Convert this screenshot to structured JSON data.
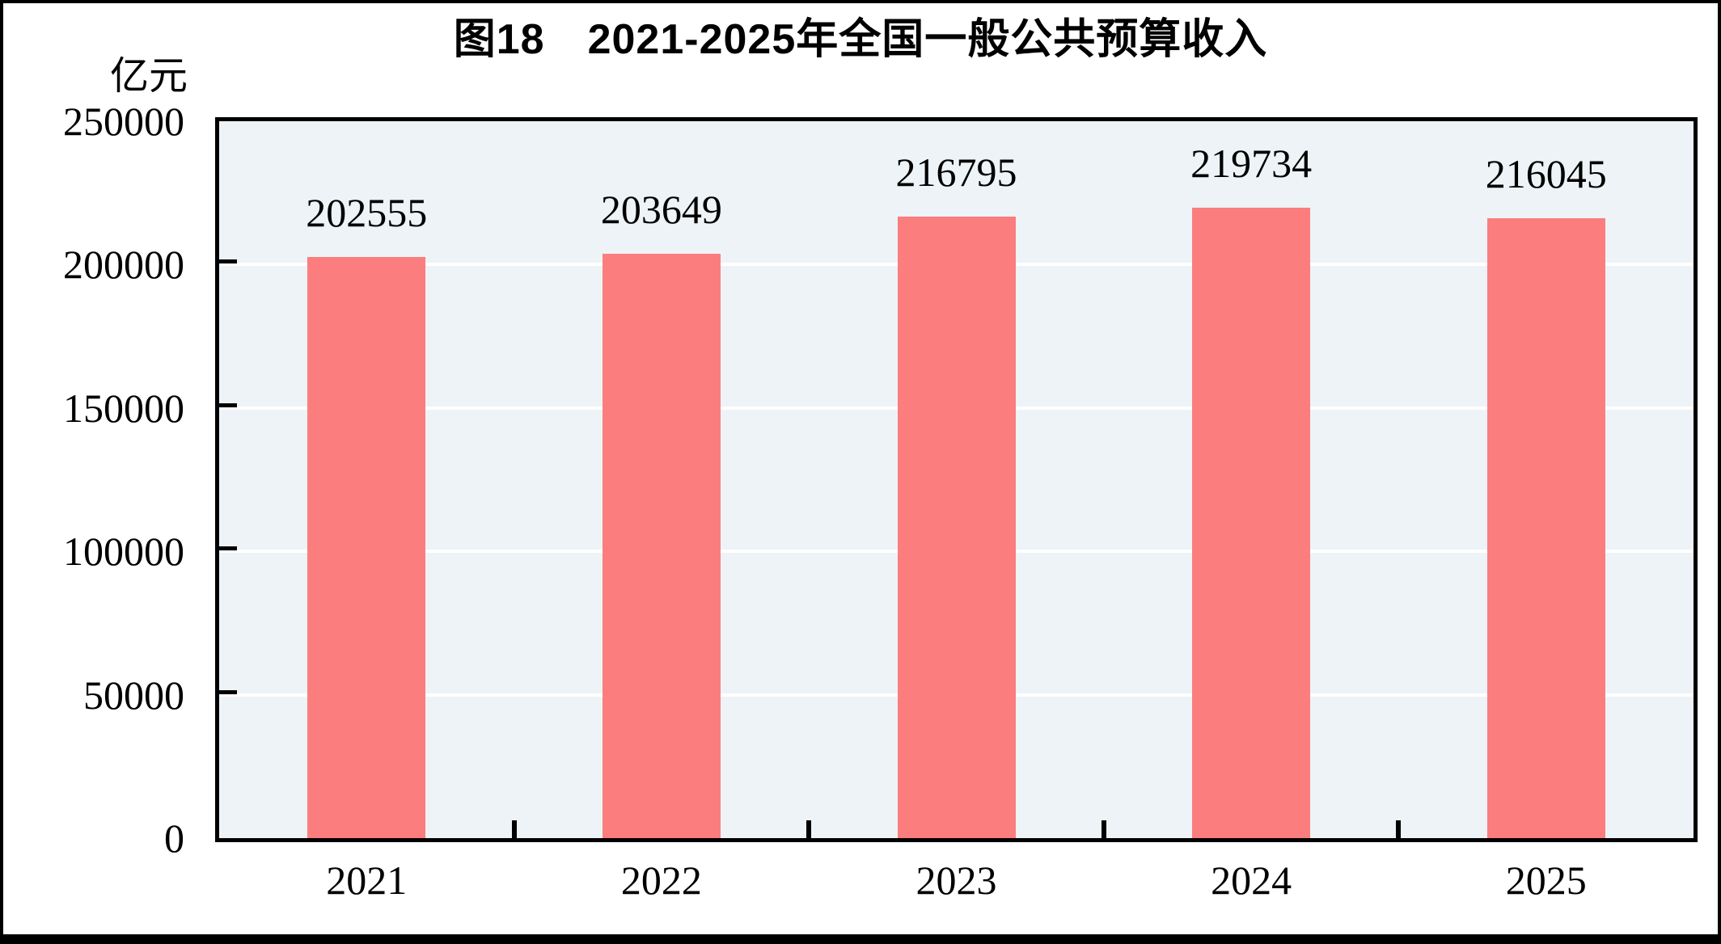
{
  "page": {
    "background_color": "#ffffff",
    "border_color": "#000000"
  },
  "header": {
    "title": "图18　2021-2025年全国一般公共预算收入",
    "unit_label": "亿元"
  },
  "chart_data": {
    "type": "bar",
    "title": "图18　2021-2025年全国一般公共预算收入",
    "categories": [
      "2021",
      "2022",
      "2023",
      "2024",
      "2025"
    ],
    "values": [
      202555,
      203649,
      216795,
      219734,
      216045
    ],
    "xlabel": "",
    "ylabel": "亿元",
    "ylim": [
      0,
      250000
    ],
    "yticks": [
      0,
      50000,
      100000,
      150000,
      200000,
      250000
    ],
    "grid": true,
    "legend": "none",
    "data_labels": true,
    "bar_color": "#FC7D7D",
    "plot_background_color": "#EDF3F6",
    "gridline_color": "#FFFFFF",
    "axis_color": "#000000",
    "text_color": "#000000"
  }
}
